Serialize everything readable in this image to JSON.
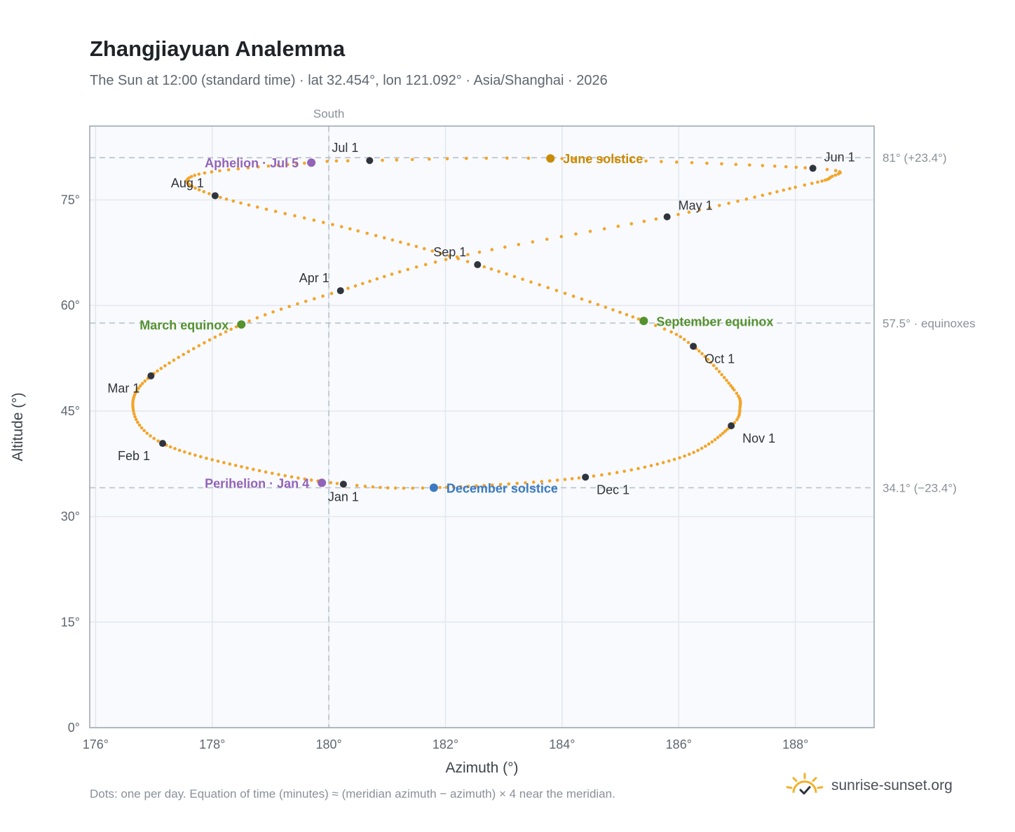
{
  "header": {
    "title": "Zhangjiayuan Analemma",
    "subtitle": "The Sun at 12:00 (standard time) · lat 32.454°, lon 121.092° · Asia/Shanghai · 2026"
  },
  "footer": {
    "note": "Dots: one per day. Equation of time (minutes) ≈ (meridian azimuth − azimuth) × 4 near the meridian.",
    "brand": "sunrise-sunset.org",
    "brand_icon": "sun-logo-icon"
  },
  "colors": {
    "track": "#f2a52a",
    "month_marker": "#30353d",
    "june_solstice": "#c98a06",
    "december_solstice": "#3b7ac2",
    "equinox": "#55922f",
    "apsis": "#9363b8",
    "plot_bg": "#f8fafd",
    "grid": "#e3e8ef",
    "frame": "#9aa4b0"
  },
  "chart_data": {
    "type": "scatter",
    "xlabel": "Azimuth (°)",
    "ylabel": "Altitude (°)",
    "xlim": [
      175.9,
      189.35
    ],
    "ylim": [
      0,
      85.5
    ],
    "x_ticks": [
      176,
      178,
      180,
      182,
      184,
      186,
      188
    ],
    "x_tick_labels": [
      "176°",
      "178°",
      "180°",
      "182°",
      "184°",
      "186°",
      "188°"
    ],
    "y_ticks": [
      0,
      15,
      30,
      45,
      60,
      75
    ],
    "y_tick_labels": [
      "0°",
      "15°",
      "30°",
      "45°",
      "60°",
      "75°"
    ],
    "grid": true,
    "reference_lines": {
      "vertical": [
        {
          "x": 180,
          "label": "South"
        }
      ],
      "horizontal": [
        {
          "y": 81.0,
          "label": "81° (+23.4°)"
        },
        {
          "y": 57.5,
          "label": "57.5° · equinoxes"
        },
        {
          "y": 34.1,
          "label": "34.1° (−23.4°)"
        }
      ]
    },
    "track_waypoints": [
      {
        "day": 1,
        "az": 180.25,
        "alt": 34.6
      },
      {
        "day": 16,
        "az": 178.6,
        "alt": 36.9
      },
      {
        "day": 32,
        "az": 177.15,
        "alt": 40.4
      },
      {
        "day": 44,
        "az": 176.65,
        "alt": 45.0
      },
      {
        "day": 60,
        "az": 176.95,
        "alt": 50.0
      },
      {
        "day": 79,
        "az": 178.5,
        "alt": 57.3
      },
      {
        "day": 91,
        "az": 180.2,
        "alt": 62.1
      },
      {
        "day": 105,
        "az": 182.2,
        "alt": 66.9
      },
      {
        "day": 121,
        "az": 185.8,
        "alt": 72.6
      },
      {
        "day": 136,
        "az": 188.0,
        "alt": 76.8
      },
      {
        "day": 144,
        "az": 188.6,
        "alt": 78.2
      },
      {
        "day": 152,
        "az": 188.3,
        "alt": 79.5
      },
      {
        "day": 172,
        "az": 183.8,
        "alt": 80.9
      },
      {
        "day": 182,
        "az": 180.7,
        "alt": 80.6
      },
      {
        "day": 186,
        "az": 179.7,
        "alt": 80.3
      },
      {
        "day": 200,
        "az": 177.7,
        "alt": 78.5
      },
      {
        "day": 213,
        "az": 178.05,
        "alt": 75.6
      },
      {
        "day": 230,
        "az": 180.5,
        "alt": 70.6
      },
      {
        "day": 244,
        "az": 182.55,
        "alt": 65.8
      },
      {
        "day": 266,
        "az": 185.4,
        "alt": 57.8
      },
      {
        "day": 274,
        "az": 186.25,
        "alt": 54.2
      },
      {
        "day": 290,
        "az": 186.95,
        "alt": 48.0
      },
      {
        "day": 298,
        "az": 187.05,
        "alt": 45.5
      },
      {
        "day": 305,
        "az": 186.9,
        "alt": 42.9
      },
      {
        "day": 320,
        "az": 186.1,
        "alt": 38.6
      },
      {
        "day": 335,
        "az": 184.4,
        "alt": 35.6
      },
      {
        "day": 355,
        "az": 181.8,
        "alt": 34.1
      },
      {
        "day": 365,
        "az": 180.33,
        "alt": 34.55
      }
    ],
    "month_markers": [
      {
        "label": "Jan 1",
        "az": 180.25,
        "alt": 34.6,
        "anchor": "below"
      },
      {
        "label": "Feb 1",
        "az": 177.15,
        "alt": 40.4,
        "anchor": "below-left"
      },
      {
        "label": "Mar 1",
        "az": 176.95,
        "alt": 50.0,
        "anchor": "left"
      },
      {
        "label": "Apr 1",
        "az": 180.2,
        "alt": 62.1,
        "anchor": "above-left"
      },
      {
        "label": "May 1",
        "az": 185.8,
        "alt": 72.6,
        "anchor": "above-right"
      },
      {
        "label": "Jun 1",
        "az": 188.3,
        "alt": 79.5,
        "anchor": "above-right"
      },
      {
        "label": "Jul 1",
        "az": 180.7,
        "alt": 80.6,
        "anchor": "above-left"
      },
      {
        "label": "Aug 1",
        "az": 178.05,
        "alt": 75.6,
        "anchor": "above-left"
      },
      {
        "label": "Sep 1",
        "az": 182.55,
        "alt": 65.8,
        "anchor": "above-left"
      },
      {
        "label": "Oct 1",
        "az": 186.25,
        "alt": 54.2,
        "anchor": "below-right"
      },
      {
        "label": "Nov 1",
        "az": 186.9,
        "alt": 42.9,
        "anchor": "below-right"
      },
      {
        "label": "Dec 1",
        "az": 184.4,
        "alt": 35.6,
        "anchor": "below-right"
      }
    ],
    "events": [
      {
        "label": "June solstice",
        "az": 183.8,
        "alt": 80.9,
        "color_key": "june_solstice",
        "side": "right"
      },
      {
        "label": "December solstice",
        "az": 181.8,
        "alt": 34.1,
        "color_key": "december_solstice",
        "side": "right"
      },
      {
        "label": "March equinox",
        "az": 178.5,
        "alt": 57.3,
        "color_key": "equinox",
        "side": "left"
      },
      {
        "label": "September equinox",
        "az": 185.4,
        "alt": 57.8,
        "color_key": "equinox",
        "side": "right"
      },
      {
        "label": "Aphelion · Jul 5",
        "az": 179.7,
        "alt": 80.3,
        "color_key": "apsis",
        "side": "left"
      },
      {
        "label": "Perihelion · Jan 4",
        "az": 179.88,
        "alt": 34.8,
        "color_key": "apsis",
        "side": "left"
      }
    ]
  }
}
